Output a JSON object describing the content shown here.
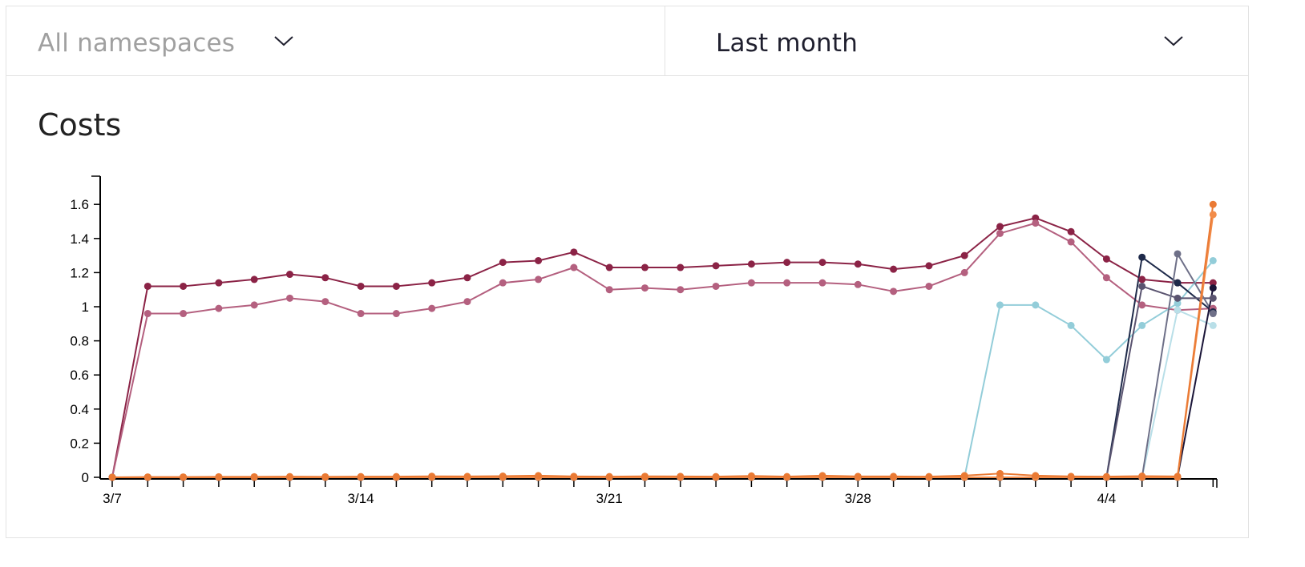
{
  "filters": {
    "namespace": {
      "value": "All namespaces"
    },
    "range": {
      "value": "Last month"
    }
  },
  "section": {
    "title": "Costs"
  },
  "icons": {
    "dropdown": "chevron-down-icon"
  },
  "chart_data": {
    "type": "line",
    "title": "Costs",
    "x": [
      "3/7",
      "3/8",
      "3/9",
      "3/10",
      "3/11",
      "3/12",
      "3/13",
      "3/14",
      "3/15",
      "3/16",
      "3/17",
      "3/18",
      "3/19",
      "3/20",
      "3/21",
      "3/22",
      "3/23",
      "3/24",
      "3/25",
      "3/26",
      "3/27",
      "3/28",
      "3/29",
      "3/30",
      "3/31",
      "4/1",
      "4/2",
      "4/3",
      "4/4",
      "4/5",
      "4/6",
      "4/7"
    ],
    "x_tick_labels": [
      "3/7",
      "3/14",
      "3/21",
      "3/28",
      "4/4"
    ],
    "ylim": [
      0,
      1.75
    ],
    "y_ticks": [
      0,
      0.2,
      0.4,
      0.6,
      0.8,
      1,
      1.2,
      1.4,
      1.6
    ],
    "y_tick_labels": [
      "0",
      "0.2",
      "0.4",
      "0.6",
      "0.8",
      "1",
      "1.2",
      "1.4",
      "1.6"
    ],
    "grid": false,
    "series": [
      {
        "color": "#8b2346",
        "values": [
          0,
          1.12,
          1.12,
          1.14,
          1.16,
          1.19,
          1.17,
          1.12,
          1.12,
          1.14,
          1.17,
          1.26,
          1.27,
          1.32,
          1.23,
          1.23,
          1.23,
          1.24,
          1.25,
          1.26,
          1.26,
          1.25,
          1.22,
          1.24,
          1.3,
          1.47,
          1.52,
          1.44,
          1.28,
          1.16,
          1.14,
          1.14
        ]
      },
      {
        "color": "#b4607f",
        "values": [
          0,
          0.96,
          0.96,
          0.99,
          1.01,
          1.05,
          1.03,
          0.96,
          0.96,
          0.99,
          1.03,
          1.14,
          1.16,
          1.23,
          1.1,
          1.11,
          1.1,
          1.12,
          1.14,
          1.14,
          1.14,
          1.13,
          1.09,
          1.12,
          1.2,
          1.43,
          1.49,
          1.38,
          1.17,
          1.01,
          0.98,
          0.99
        ]
      },
      {
        "color": "#93cdd9",
        "values": [
          0,
          0,
          0,
          0,
          0,
          0,
          0,
          0,
          0,
          0,
          0,
          0,
          0,
          0,
          0,
          0,
          0,
          0,
          0,
          0,
          0,
          0,
          0,
          0,
          0,
          1.01,
          1.01,
          0.89,
          0.69,
          0.89,
          1.02,
          1.27
        ]
      },
      {
        "color": "#b9dfe8",
        "values": [
          0,
          0,
          0,
          0,
          0,
          0,
          0,
          0,
          0,
          0,
          0,
          0,
          0,
          0,
          0,
          0,
          0,
          0,
          0,
          0,
          0,
          0,
          0,
          0,
          0,
          0,
          0,
          0,
          0,
          0,
          0.98,
          0.89
        ]
      },
      {
        "color": "#1e2a4a",
        "values": [
          0,
          0,
          0,
          0,
          0,
          0,
          0,
          0,
          0,
          0,
          0,
          0,
          0,
          0,
          0,
          0,
          0,
          0,
          0,
          0,
          0,
          0,
          0,
          0,
          0,
          0,
          0,
          0,
          0,
          1.29,
          1.14,
          0.97
        ]
      },
      {
        "color": "#5a5470",
        "values": [
          0,
          0,
          0,
          0,
          0,
          0,
          0,
          0,
          0,
          0,
          0,
          0,
          0,
          0,
          0,
          0,
          0,
          0,
          0,
          0,
          0,
          0,
          0,
          0,
          0,
          0,
          0,
          0,
          0,
          1.12,
          1.05,
          1.05
        ]
      },
      {
        "color": "#6e7088",
        "values": [
          0,
          0,
          0,
          0,
          0,
          0,
          0,
          0,
          0,
          0,
          0,
          0,
          0,
          0,
          0,
          0,
          0,
          0,
          0,
          0,
          0,
          0,
          0,
          0,
          0,
          0,
          0,
          0,
          0,
          0,
          1.31,
          0.96
        ]
      },
      {
        "color": "#1a1538",
        "values": [
          0,
          0,
          0,
          0,
          0,
          0,
          0,
          0,
          0,
          0,
          0,
          0,
          0,
          0,
          0,
          0,
          0,
          0,
          0,
          0,
          0,
          0,
          0,
          0,
          0,
          0,
          0,
          0,
          0,
          0,
          0,
          1.11
        ]
      },
      {
        "color": "#f28c4a",
        "values": [
          0,
          0,
          0,
          0,
          0,
          0,
          0,
          0,
          0,
          0,
          0,
          0,
          0,
          0,
          0,
          0,
          0,
          0,
          0,
          0,
          0,
          0,
          0,
          0,
          0,
          0,
          0,
          0,
          0,
          0,
          0,
          1.54
        ]
      },
      {
        "color": "#ea7a34",
        "values": [
          0,
          0.002,
          0.002,
          0.003,
          0.003,
          0.004,
          0.003,
          0.004,
          0.004,
          0.006,
          0.005,
          0.007,
          0.01,
          0.005,
          0.004,
          0.006,
          0.005,
          0.004,
          0.008,
          0.004,
          0.01,
          0.005,
          0.005,
          0.004,
          0.01,
          0.022,
          0.01,
          0.005,
          0.004,
          0.007,
          0.005,
          1.6
        ]
      }
    ]
  }
}
